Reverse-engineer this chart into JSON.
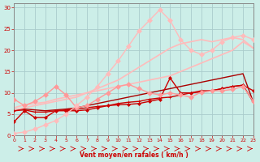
{
  "xlabel": "Vent moyen/en rafales ( km/h )",
  "xlim": [
    0,
    23
  ],
  "ylim": [
    0,
    31
  ],
  "background_color": "#cceee8",
  "grid_color": "#aacccc",
  "x": [
    0,
    1,
    2,
    3,
    4,
    5,
    6,
    7,
    8,
    9,
    10,
    11,
    12,
    13,
    14,
    15,
    16,
    17,
    18,
    19,
    20,
    21,
    22,
    23
  ],
  "series": [
    {
      "y": [
        3.2,
        5.8,
        4.2,
        4.2,
        5.8,
        5.8,
        5.8,
        6.0,
        6.5,
        7.0,
        7.2,
        7.3,
        7.5,
        8.0,
        8.5,
        13.5,
        10.0,
        10.0,
        10.2,
        10.5,
        11.0,
        11.5,
        11.8,
        10.5
      ],
      "color": "#cc0000",
      "marker": "D",
      "markersize": 2,
      "linewidth": 1.0,
      "alpha": 1.0
    },
    {
      "y": [
        5.8,
        6.0,
        5.5,
        5.5,
        5.8,
        6.0,
        6.2,
        6.5,
        6.8,
        7.0,
        7.5,
        7.8,
        8.0,
        8.5,
        8.8,
        9.0,
        9.5,
        10.0,
        10.5,
        10.5,
        11.0,
        11.5,
        11.8,
        7.8
      ],
      "color": "#cc0000",
      "marker": "+",
      "markersize": 3,
      "linewidth": 1.0,
      "alpha": 1.0
    },
    {
      "y": [
        6.0,
        6.2,
        6.0,
        5.8,
        6.0,
        6.2,
        6.5,
        7.0,
        7.5,
        8.0,
        8.5,
        9.0,
        9.5,
        10.0,
        10.5,
        11.0,
        11.5,
        12.0,
        12.5,
        13.0,
        13.5,
        14.0,
        14.5,
        7.8
      ],
      "color": "#aa0000",
      "marker": null,
      "markersize": 0,
      "linewidth": 1.0,
      "alpha": 1.0
    },
    {
      "y": [
        8.5,
        7.0,
        8.0,
        9.5,
        11.5,
        9.5,
        6.5,
        7.0,
        8.5,
        10.0,
        11.5,
        12.0,
        11.0,
        10.0,
        9.5,
        10.0,
        9.5,
        9.0,
        10.2,
        10.5,
        10.5,
        10.8,
        11.5,
        8.0
      ],
      "color": "#ff9999",
      "marker": "D",
      "markersize": 3,
      "linewidth": 1.0,
      "alpha": 1.0
    },
    {
      "y": [
        6.5,
        7.2,
        7.5,
        7.8,
        8.5,
        9.0,
        9.5,
        10.0,
        10.5,
        11.0,
        11.5,
        12.0,
        12.5,
        13.0,
        13.5,
        14.0,
        15.0,
        16.0,
        17.0,
        18.0,
        19.0,
        20.0,
        22.0,
        20.5
      ],
      "color": "#ffbbbb",
      "marker": null,
      "markersize": 0,
      "linewidth": 1.2,
      "alpha": 1.0
    },
    {
      "y": [
        6.0,
        6.5,
        7.0,
        7.5,
        8.0,
        8.5,
        9.0,
        10.0,
        11.0,
        12.0,
        13.0,
        14.5,
        16.0,
        17.5,
        19.0,
        20.5,
        21.5,
        22.0,
        22.5,
        22.0,
        22.5,
        23.0,
        22.5,
        20.5
      ],
      "color": "#ffbbbb",
      "marker": null,
      "markersize": 0,
      "linewidth": 1.2,
      "alpha": 1.0
    },
    {
      "y": [
        0.5,
        0.8,
        1.5,
        2.5,
        3.5,
        5.0,
        7.0,
        9.0,
        11.5,
        14.5,
        17.5,
        21.0,
        24.5,
        27.0,
        29.5,
        27.0,
        22.5,
        20.0,
        19.0,
        20.0,
        22.0,
        23.0,
        23.5,
        22.5
      ],
      "color": "#ffbbbb",
      "marker": "D",
      "markersize": 3,
      "linewidth": 1.0,
      "alpha": 1.0
    }
  ],
  "xticks": [
    0,
    1,
    2,
    3,
    4,
    5,
    6,
    7,
    8,
    9,
    10,
    11,
    12,
    13,
    14,
    15,
    16,
    17,
    18,
    19,
    20,
    21,
    22,
    23
  ],
  "yticks": [
    0,
    5,
    10,
    15,
    20,
    25,
    30
  ],
  "tick_color": "#cc0000",
  "arrow_color": "#cc0000",
  "spine_color": "#888888"
}
